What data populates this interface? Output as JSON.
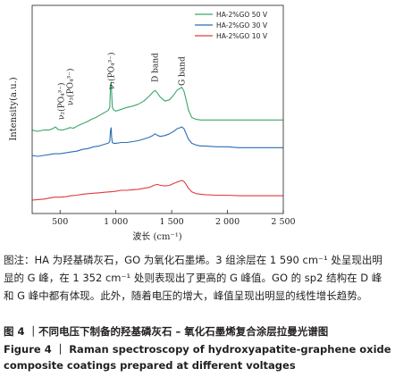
{
  "chart_data": {
    "type": "line",
    "xlabel": "波长 (cm⁻¹)",
    "ylabel": "Intensity(a.u.)",
    "xlim": [
      250,
      2500
    ],
    "xticks": [
      500,
      1000,
      1500,
      2000,
      2500
    ],
    "xtick_labels": [
      "500",
      "1 000",
      "1 500",
      "2 000",
      "2 500"
    ],
    "yticks": "none",
    "grid": false,
    "legend_position": "top-right",
    "series": [
      {
        "name": "HA-2%GO 50 V",
        "color": "#3aa66a",
        "x": [
          250,
          300,
          350,
          400,
          430,
          460,
          480,
          520,
          560,
          590,
          620,
          660,
          700,
          740,
          780,
          820,
          860,
          900,
          930,
          945,
          952,
          958,
          962,
          968,
          980,
          1000,
          1050,
          1100,
          1150,
          1200,
          1250,
          1300,
          1330,
          1352,
          1375,
          1400,
          1440,
          1480,
          1520,
          1550,
          1575,
          1590,
          1610,
          1630,
          1650,
          1680,
          1720,
          1760,
          1800,
          1900,
          2000,
          2100,
          2200,
          2300,
          2400,
          2500
        ],
        "y": [
          0.62,
          0.61,
          0.62,
          0.62,
          0.63,
          0.645,
          0.625,
          0.62,
          0.63,
          0.64,
          0.635,
          0.655,
          0.67,
          0.685,
          0.705,
          0.72,
          0.74,
          0.76,
          0.775,
          0.8,
          0.98,
          1.0,
          0.92,
          0.8,
          0.78,
          0.77,
          0.785,
          0.8,
          0.81,
          0.825,
          0.85,
          0.89,
          0.92,
          0.935,
          0.91,
          0.88,
          0.85,
          0.86,
          0.9,
          0.94,
          0.95,
          0.96,
          0.93,
          0.86,
          0.78,
          0.72,
          0.705,
          0.7,
          0.7,
          0.7,
          0.7,
          0.7,
          0.7,
          0.7,
          0.7,
          0.7
        ]
      },
      {
        "name": "HA-2%GO 30 V",
        "color": "#2a6db4",
        "x": [
          250,
          300,
          350,
          400,
          450,
          500,
          550,
          600,
          650,
          700,
          750,
          800,
          850,
          900,
          930,
          945,
          952,
          958,
          962,
          968,
          980,
          1000,
          1050,
          1100,
          1150,
          1200,
          1250,
          1300,
          1330,
          1352,
          1375,
          1400,
          1440,
          1480,
          1520,
          1550,
          1575,
          1590,
          1610,
          1630,
          1650,
          1680,
          1720,
          1760,
          1800,
          1900,
          2000,
          2100,
          2200,
          2300,
          2400,
          2500
        ],
        "y": [
          0.385,
          0.38,
          0.385,
          0.39,
          0.395,
          0.395,
          0.4,
          0.405,
          0.41,
          0.42,
          0.425,
          0.435,
          0.44,
          0.45,
          0.455,
          0.465,
          0.53,
          0.545,
          0.49,
          0.46,
          0.455,
          0.455,
          0.46,
          0.46,
          0.465,
          0.47,
          0.48,
          0.49,
          0.5,
          0.51,
          0.5,
          0.495,
          0.5,
          0.51,
          0.525,
          0.54,
          0.545,
          0.55,
          0.54,
          0.51,
          0.48,
          0.455,
          0.445,
          0.44,
          0.44,
          0.435,
          0.435,
          0.43,
          0.43,
          0.43,
          0.43,
          0.43
        ]
      },
      {
        "name": "HA-2%GO 10 V",
        "color": "#e03a3e",
        "x": [
          250,
          300,
          350,
          400,
          450,
          500,
          550,
          600,
          650,
          700,
          750,
          800,
          850,
          900,
          950,
          1000,
          1050,
          1100,
          1150,
          1200,
          1250,
          1300,
          1340,
          1370,
          1400,
          1440,
          1480,
          1520,
          1550,
          1575,
          1590,
          1610,
          1630,
          1650,
          1680,
          1720,
          1760,
          1800,
          1900,
          2000,
          2100,
          2200,
          2300,
          2400,
          2500
        ],
        "y": [
          0.14,
          0.145,
          0.15,
          0.16,
          0.17,
          0.17,
          0.175,
          0.185,
          0.19,
          0.2,
          0.205,
          0.21,
          0.215,
          0.22,
          0.225,
          0.23,
          0.24,
          0.24,
          0.245,
          0.25,
          0.26,
          0.27,
          0.29,
          0.3,
          0.29,
          0.285,
          0.29,
          0.31,
          0.325,
          0.335,
          0.34,
          0.33,
          0.3,
          0.26,
          0.225,
          0.205,
          0.2,
          0.195,
          0.19,
          0.19,
          0.185,
          0.185,
          0.185,
          0.185,
          0.185
        ]
      }
    ],
    "annotations": [
      {
        "text": "ν₂(PO₄³⁻)",
        "x": 510
      },
      {
        "text": "ν₃(PO₄³⁻)",
        "x": 590
      },
      {
        "text": "ν₁(PO₄³⁻)",
        "x": 960
      },
      {
        "text": "D band",
        "x": 1352
      },
      {
        "text": "G band",
        "x": 1590
      }
    ]
  },
  "caption": {
    "note": "图注：HA 为羟基磷灰石，GO 为氧化石墨烯。3 组涂层在 1 590 cm⁻¹ 处呈现出明显的 G 峰，在 1 352 cm⁻¹ 处则表现出了更高的 G 峰值。GO 的 sp2 结构在 D 峰和 G 峰中都有体现。此外，随着电压的增大，峰值呈现出明显的线性增长趋势。",
    "title_cn": "图 4 ｜不同电压下制备的羟基磷灰石 – 氧化石墨烯复合涂层拉曼光谱图",
    "title_en": "Figure 4 ｜ Raman spectroscopy of hydroxyapatite-graphene oxide composite coatings prepared at different voltages"
  }
}
